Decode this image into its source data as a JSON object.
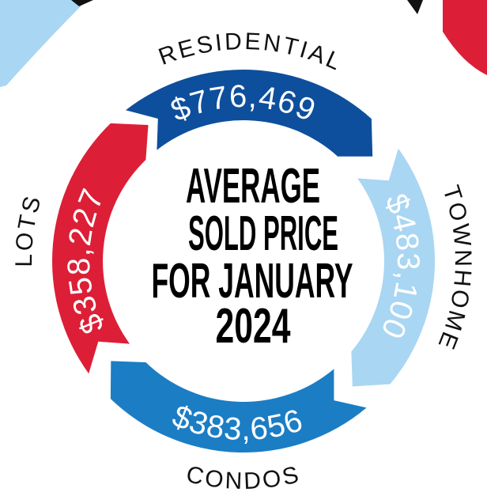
{
  "title_lines": [
    "AVERAGE",
    "SOLD PRICE",
    "FOR JANUARY",
    "2024"
  ],
  "segments": [
    {
      "label": "RESIDENTIAL",
      "value": "$776,469"
    },
    {
      "label": "TOWNHOME",
      "value": "$483,100"
    },
    {
      "label": "CONDOS",
      "value": "$383,656"
    },
    {
      "label": "LOTS",
      "value": "$358,227"
    }
  ]
}
